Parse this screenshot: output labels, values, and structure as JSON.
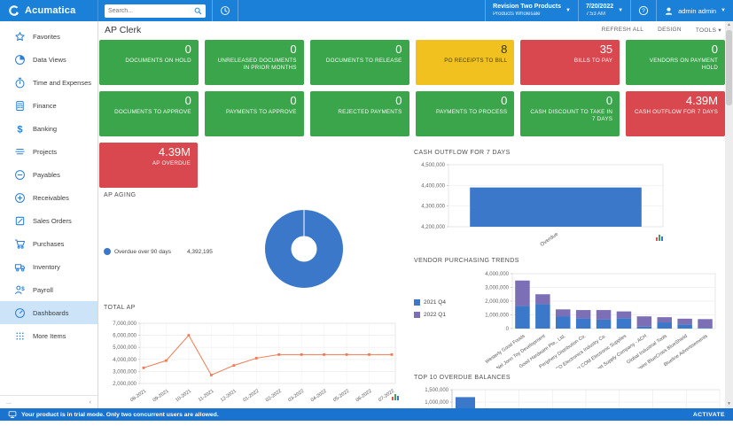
{
  "topbar": {
    "brand": "Acumatica",
    "search_placeholder": "Search...",
    "company_name": "Revision Two Products",
    "company_branch": "Products Wholesale",
    "date": "7/20/2022",
    "time": "7:53 AM",
    "user_name": "admin admin"
  },
  "sidebar": {
    "items": [
      {
        "label": "Favorites",
        "icon": "star-icon",
        "selected": false
      },
      {
        "label": "Data Views",
        "icon": "pie-icon",
        "selected": false
      },
      {
        "label": "Time and Expenses",
        "icon": "stopwatch-icon",
        "selected": false
      },
      {
        "label": "Finance",
        "icon": "calculator-icon",
        "selected": false
      },
      {
        "label": "Banking",
        "icon": "dollar-icon",
        "selected": false
      },
      {
        "label": "Projects",
        "icon": "layers-icon",
        "selected": false
      },
      {
        "label": "Payables",
        "icon": "minus-circle-icon",
        "selected": false
      },
      {
        "label": "Receivables",
        "icon": "plus-circle-icon",
        "selected": false
      },
      {
        "label": "Sales Orders",
        "icon": "pencil-icon",
        "selected": false
      },
      {
        "label": "Purchases",
        "icon": "cart-icon",
        "selected": false
      },
      {
        "label": "Inventory",
        "icon": "truck-icon",
        "selected": false
      },
      {
        "label": "Payroll",
        "icon": "payroll-icon",
        "selected": false
      },
      {
        "label": "Dashboards",
        "icon": "gauge-icon",
        "selected": true
      },
      {
        "label": "More Items",
        "icon": "grid-icon",
        "selected": false
      }
    ],
    "footer": {
      "more": "...",
      "collapse": "‹"
    }
  },
  "header": {
    "title": "AP Clerk",
    "actions": [
      "REFRESH ALL",
      "DESIGN",
      "TOOLS"
    ]
  },
  "kpi_rows": [
    [
      {
        "value": "0",
        "label": "DOCUMENTS ON HOLD",
        "color": "green"
      },
      {
        "value": "0",
        "label": "UNRELEASED DOCUMENTS IN PRIOR MONTHS",
        "color": "green"
      },
      {
        "value": "0",
        "label": "DOCUMENTS TO RELEASE",
        "color": "green"
      },
      {
        "value": "8",
        "label": "PO RECEIPTS TO BILL",
        "color": "yellow"
      },
      {
        "value": "35",
        "label": "BILLS TO PAY",
        "color": "red"
      },
      {
        "value": "0",
        "label": "VENDORS ON PAYMENT HOLD",
        "color": "green"
      }
    ],
    [
      {
        "value": "0",
        "label": "DOCUMENTS TO APPROVE",
        "color": "green"
      },
      {
        "value": "0",
        "label": "PAYMENTS TO APPROVE",
        "color": "green"
      },
      {
        "value": "0",
        "label": "REJECTED PAYMENTS",
        "color": "green"
      },
      {
        "value": "0",
        "label": "PAYMENTS TO PROCESS",
        "color": "green"
      },
      {
        "value": "0",
        "label": "CASH DISCOUNT TO TAKE IN 7 DAYS",
        "color": "green"
      },
      {
        "value": "4.39M",
        "label": "CASH OUTFLOW FOR 7 DAYS",
        "color": "red"
      }
    ],
    [
      {
        "value": "4.39M",
        "label": "AP OVERDUE",
        "color": "red"
      }
    ]
  ],
  "colors": {
    "green": "#3aa54a",
    "yellow": "#f0c11f",
    "red": "#d9484e",
    "topbar_blue": "#1a80d8",
    "chart_blue": "#3b78c9",
    "chart_purple": "#7d6fb6",
    "chart_orange": "#f17a52",
    "selected_nav": "#cde4f8"
  },
  "chart_data": [
    {
      "id": "ap_aging",
      "type": "pie",
      "title": "AP AGING",
      "donut": true,
      "legend_position": "left",
      "slices": [
        {
          "label": "Overdue over 90 days",
          "value": 4392195,
          "color": "#3b78c9"
        }
      ],
      "legend_value_text": "4,392,195"
    },
    {
      "id": "cash_outflow",
      "type": "bar",
      "title": "CASH OUTFLOW FOR 7 DAYS",
      "categories": [
        "Overdue"
      ],
      "values": [
        4390000
      ],
      "ylim": [
        4200000,
        4500000
      ],
      "ytick_step": 100000,
      "grid": true,
      "bar_color": "#3b78c9"
    },
    {
      "id": "vendor_trends",
      "type": "bar-stacked",
      "title": "VENDOR PURCHASING TRENDS",
      "categories": [
        "Westerly Good Foods",
        "Nel Jonn Toy Development",
        "Good Hardware Pte., Ltd.",
        "Periphery Distribution Co.",
        "ICHICO Electronics Industry Co.",
        "East COM Electronic Supplies",
        "Widget Supply Company - ACH",
        "Global Industrial Tools",
        "Empire BlueCross BlueShield",
        "Blueline Advertisements"
      ],
      "series": [
        {
          "name": "2021 Q4",
          "color": "#3b78c9",
          "values": [
            1650000,
            1780000,
            900000,
            750000,
            650000,
            760000,
            150000,
            450000,
            300000,
            50000
          ]
        },
        {
          "name": "2022 Q1",
          "color": "#7d6fb6",
          "values": [
            1850000,
            720000,
            500000,
            600000,
            700000,
            490000,
            740000,
            380000,
            420000,
            640000
          ]
        }
      ],
      "ylim": [
        0,
        4000000
      ],
      "ytick_step": 1000000,
      "grid": true,
      "legend_position": "left"
    },
    {
      "id": "total_ap",
      "type": "line",
      "title": "TOTAL AP",
      "categories": [
        "08-2021",
        "09-2021",
        "10-2021",
        "11-2021",
        "12-2021",
        "01-2022",
        "02-2022",
        "03-2022",
        "04-2022",
        "05-2022",
        "06-2022",
        "07-2022"
      ],
      "values": [
        3300000,
        3900000,
        6000000,
        2700000,
        3500000,
        4100000,
        4400000,
        4400000,
        4400000,
        4400000,
        4400000,
        4400000
      ],
      "ylim": [
        2000000,
        7000000
      ],
      "ytick_step": 1000000,
      "grid": true,
      "line_color": "#f17a52"
    },
    {
      "id": "top10_overdue",
      "type": "bar",
      "title": "TOP 10 OVERDUE BALANCES",
      "categories": [
        ""
      ],
      "values": [
        1200000
      ],
      "ylim": [
        0,
        1500000
      ],
      "ytick_step": 500000,
      "grid": true,
      "bar_color": "#3b78c9",
      "clipped": true
    }
  ],
  "trialbar": {
    "message": "Your product is in trial mode. Only two concurrent users are allowed.",
    "action": "ACTIVATE"
  }
}
